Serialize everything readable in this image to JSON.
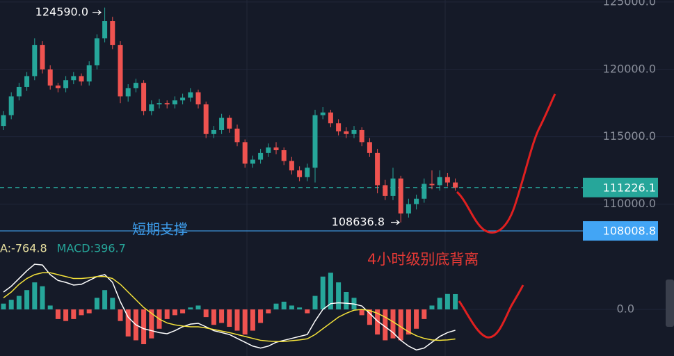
{
  "chart_data": {
    "type": "candlestick",
    "up_color": "#26a69a",
    "down_color": "#ef5350",
    "ylim": [
      107600,
      125150
    ],
    "yticks": [
      {
        "value": 125000,
        "label": "125000.0"
      },
      {
        "value": 120000,
        "label": "120000.0"
      },
      {
        "value": 115000,
        "label": "115000.0"
      },
      {
        "value": 110000,
        "label": "110000.0"
      }
    ],
    "grid": true,
    "candles": [
      [
        115800,
        116900,
        115500,
        116600
      ],
      [
        116600,
        118300,
        116300,
        118000
      ],
      [
        118000,
        119000,
        117700,
        118700
      ],
      [
        118700,
        119800,
        118400,
        119500
      ],
      [
        119500,
        122300,
        119200,
        121800
      ],
      [
        121800,
        122100,
        119700,
        120000
      ],
      [
        120000,
        120300,
        118500,
        118800
      ],
      [
        118800,
        119000,
        118300,
        118600
      ],
      [
        118600,
        119500,
        118300,
        119200
      ],
      [
        119200,
        119800,
        118900,
        119500
      ],
      [
        119500,
        119700,
        118800,
        119100
      ],
      [
        119100,
        120600,
        118800,
        120300
      ],
      [
        120300,
        122600,
        120000,
        122300
      ],
      [
        122300,
        124590,
        122000,
        123600
      ],
      [
        123600,
        123900,
        121500,
        121800
      ],
      [
        121800,
        122100,
        117500,
        118000
      ],
      [
        118000,
        118900,
        117600,
        118600
      ],
      [
        118600,
        119300,
        118300,
        119000
      ],
      [
        119000,
        119200,
        116600,
        116900
      ],
      [
        116900,
        117700,
        116600,
        117400
      ],
      [
        117400,
        117800,
        117100,
        117500
      ],
      [
        117500,
        117700,
        117100,
        117400
      ],
      [
        117400,
        118000,
        117100,
        117700
      ],
      [
        117700,
        118200,
        117400,
        117900
      ],
      [
        117900,
        118600,
        117600,
        118300
      ],
      [
        118300,
        118500,
        117100,
        117400
      ],
      [
        117400,
        117600,
        114900,
        115200
      ],
      [
        115200,
        115800,
        114900,
        115500
      ],
      [
        115500,
        116700,
        115200,
        116400
      ],
      [
        116400,
        116600,
        115300,
        115600
      ],
      [
        115600,
        115900,
        114300,
        114600
      ],
      [
        114600,
        114800,
        112700,
        113000
      ],
      [
        113000,
        113600,
        112700,
        113300
      ],
      [
        113300,
        114100,
        113000,
        113800
      ],
      [
        113800,
        114500,
        113500,
        114200
      ],
      [
        114200,
        114600,
        113700,
        114000
      ],
      [
        114000,
        114200,
        112900,
        113200
      ],
      [
        113200,
        113500,
        112200,
        112500
      ],
      [
        112500,
        112800,
        111700,
        112000
      ],
      [
        112000,
        113000,
        111700,
        112700
      ],
      [
        112700,
        117000,
        111600,
        116600
      ],
      [
        116600,
        117200,
        116300,
        116800
      ],
      [
        116800,
        117000,
        115700,
        116000
      ],
      [
        116000,
        116300,
        115100,
        115400
      ],
      [
        115400,
        115700,
        114900,
        115200
      ],
      [
        115200,
        115800,
        114900,
        115500
      ],
      [
        115500,
        115700,
        114300,
        114600
      ],
      [
        114600,
        114900,
        113500,
        113800
      ],
      [
        113800,
        114100,
        110800,
        111400
      ],
      [
        111400,
        111800,
        110300,
        110600
      ],
      [
        110600,
        112700,
        110300,
        111900
      ],
      [
        111900,
        112100,
        108636.8,
        109300
      ],
      [
        109300,
        110400,
        109000,
        110000
      ],
      [
        110000,
        110700,
        109600,
        110400
      ],
      [
        110400,
        111900,
        110100,
        111500
      ],
      [
        111500,
        112500,
        111100,
        111400
      ],
      [
        111400,
        112500,
        111000,
        112000
      ],
      [
        112000,
        112300,
        111300,
        111600
      ],
      [
        111600,
        111900,
        111000,
        111226.1
      ]
    ],
    "price_lines": [
      {
        "value": 111226.1,
        "color": "#26a69a",
        "style": "dashed"
      },
      {
        "value": 108008.8,
        "color": "#42a5f5",
        "style": "solid"
      }
    ],
    "high_label": {
      "value": 124590,
      "label": "124590.0"
    },
    "low_label": 108636.8,
    "support_text": "短期支撑",
    "divergence_text": "4小时级别底背离",
    "macd": {
      "ylim": [
        -1206,
        1800
      ],
      "yticks": [
        {
          "value": 0,
          "label": "0.0"
        }
      ],
      "legend": [
        {
          "text": "A:-764.8",
          "color": "#e8e0a0"
        },
        {
          "text": "MACD:396.7",
          "color": "#26a69a"
        }
      ],
      "histogram": [
        150,
        250,
        350,
        500,
        700,
        600,
        100,
        -250,
        -300,
        -250,
        -150,
        -100,
        300,
        500,
        300,
        -300,
        -700,
        -800,
        -900,
        -750,
        -500,
        -250,
        -150,
        -100,
        50,
        100,
        -200,
        -400,
        -350,
        -450,
        -550,
        -650,
        -550,
        -350,
        -100,
        150,
        200,
        100,
        50,
        -100,
        350,
        850,
        950,
        700,
        450,
        300,
        -150,
        -400,
        -650,
        -800,
        -750,
        -800,
        -650,
        -500,
        -250,
        100,
        300,
        400,
        396.7
      ],
      "dif": {
        "color": "#ffffff",
        "values": [
          450,
          600,
          800,
          1000,
          1170,
          1150,
          900,
          750,
          700,
          630,
          650,
          750,
          850,
          900,
          700,
          200,
          -200,
          -400,
          -500,
          -550,
          -600,
          -630,
          -550,
          -450,
          -380,
          -360,
          -450,
          -550,
          -600,
          -650,
          -750,
          -850,
          -950,
          -1000,
          -950,
          -850,
          -800,
          -750,
          -700,
          -650,
          -300,
          0,
          150,
          170,
          160,
          140,
          90,
          -100,
          -300,
          -450,
          -600,
          -800,
          -950,
          -1050,
          -1000,
          -850,
          -700,
          -600,
          -540
        ]
      },
      "dea": {
        "color": "#f5e33a",
        "values": [
          300,
          450,
          650,
          800,
          900,
          950,
          950,
          900,
          850,
          800,
          800,
          820,
          850,
          850,
          800,
          650,
          450,
          250,
          50,
          -100,
          -250,
          -350,
          -400,
          -430,
          -450,
          -450,
          -480,
          -520,
          -560,
          -600,
          -650,
          -700,
          -750,
          -800,
          -820,
          -830,
          -830,
          -810,
          -790,
          -760,
          -650,
          -500,
          -350,
          -200,
          -100,
          -20,
          0,
          -30,
          -100,
          -200,
          -320,
          -450,
          -580,
          -680,
          -750,
          -790,
          -800,
          -790,
          -764.8
        ]
      }
    }
  }
}
